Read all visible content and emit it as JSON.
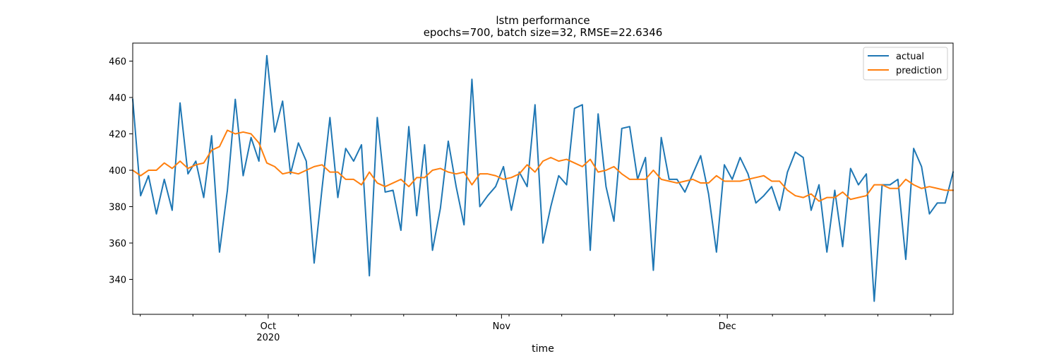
{
  "chart_data": {
    "type": "line",
    "title": "lstm performance",
    "subtitle": "epochs=700, batch size=32, RMSE=22.6346",
    "xlabel": "time",
    "ylabel": "",
    "x_start": "2020-09-13",
    "x_end": "2020-12-31",
    "xlim": [
      "2020-09-13",
      "2020-12-31"
    ],
    "ylim": [
      320.8,
      469.9
    ],
    "y_ticks": [
      "340",
      "360",
      "380",
      "400",
      "420",
      "440",
      "460"
    ],
    "x_major_ticks": [
      {
        "date": "2020-10-01",
        "label": "Oct",
        "sublabel": "2020"
      },
      {
        "date": "2020-11-01",
        "label": "Nov",
        "sublabel": ""
      },
      {
        "date": "2020-12-01",
        "label": "Dec",
        "sublabel": ""
      }
    ],
    "x_minor_tick_dates": [
      "2020-09-14",
      "2020-09-21",
      "2020-09-28",
      "2020-10-05",
      "2020-10-12",
      "2020-10-19",
      "2020-10-26",
      "2020-11-02",
      "2020-11-09",
      "2020-11-16",
      "2020-11-23",
      "2020-11-30",
      "2020-12-07",
      "2020-12-14",
      "2020-12-21",
      "2020-12-28"
    ],
    "grid": false,
    "legend": {
      "position": "top-right",
      "entries": [
        "actual",
        "prediction"
      ]
    },
    "series": [
      {
        "name": "actual",
        "color": "#1f77b4",
        "values": [
          439,
          386,
          397,
          376,
          395,
          378,
          437,
          398,
          405,
          385,
          419,
          355,
          389,
          439,
          397,
          418,
          405,
          463,
          421,
          438,
          398,
          415,
          405,
          349,
          390,
          429,
          385,
          412,
          405,
          414,
          342,
          429,
          388,
          389,
          367,
          424,
          375,
          414,
          356,
          379,
          416,
          391,
          370,
          450,
          380,
          386,
          391,
          402,
          378,
          399,
          391,
          436,
          360,
          380,
          397,
          392,
          434,
          436,
          356,
          431,
          391,
          372,
          423,
          424,
          395,
          407,
          345,
          418,
          395,
          395,
          388,
          398,
          408,
          387,
          355,
          403,
          395,
          407,
          398,
          382,
          386,
          391,
          378,
          399,
          410,
          407,
          378,
          392,
          355,
          389,
          358,
          401,
          392,
          398,
          328,
          392,
          392,
          395,
          351,
          412,
          402,
          376,
          382,
          382,
          399
        ],
        "values_prefix_note": ""
      },
      {
        "name": "prediction",
        "color": "#ff7f0e",
        "values": [
          400,
          397,
          400,
          400,
          404,
          401,
          405,
          401,
          403,
          404,
          411,
          413,
          422,
          420,
          421,
          420,
          415,
          404,
          402,
          398,
          399,
          398,
          400,
          402,
          403,
          399,
          399,
          395,
          395,
          392,
          399,
          393,
          391,
          393,
          395,
          391,
          396,
          396,
          400,
          401,
          399,
          398,
          399,
          392,
          398,
          398,
          397,
          395,
          396,
          398,
          403,
          399,
          405,
          407,
          405,
          406,
          404,
          402,
          406,
          399,
          400,
          402,
          398,
          395,
          395,
          395,
          400,
          395,
          394,
          393,
          394,
          395,
          393,
          393,
          397,
          394,
          394,
          394,
          395,
          396,
          397,
          394,
          394,
          389,
          386,
          385,
          387,
          383,
          385,
          385,
          388,
          384,
          385,
          386,
          392,
          392,
          390,
          390,
          395,
          392,
          390,
          391,
          390,
          389,
          389
        ]
      }
    ]
  }
}
